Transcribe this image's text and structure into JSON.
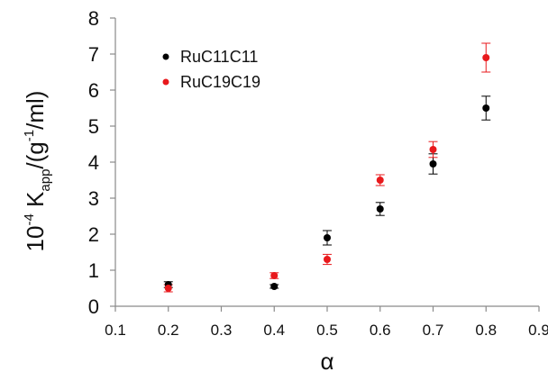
{
  "chart_data": {
    "type": "scatter",
    "title": "",
    "xlabel": "α",
    "ylabel": {
      "prefix": "10",
      "exponent": "-4",
      "symbol": "K",
      "subscript": "app",
      "unit_open": "/(g",
      "unit_exponent": "-1",
      "unit_close": "/ml)"
    },
    "xlim": [
      0.1,
      0.9
    ],
    "ylim": [
      0,
      8
    ],
    "xticks": [
      "0.1",
      "0.2",
      "0.3",
      "0.4",
      "0.5",
      "0.6",
      "0.7",
      "0.8",
      "0.9"
    ],
    "yticks": [
      "0",
      "1",
      "2",
      "3",
      "4",
      "5",
      "6",
      "7",
      "8"
    ],
    "grid": false,
    "legend_position": "top-left",
    "series": [
      {
        "name": "RuC11C11",
        "color": "#000000",
        "x": [
          0.2,
          0.4,
          0.5,
          0.6,
          0.7,
          0.8
        ],
        "y": [
          0.6,
          0.55,
          1.9,
          2.7,
          3.95,
          5.5
        ],
        "err": [
          0.08,
          0.05,
          0.2,
          0.18,
          0.28,
          0.33
        ]
      },
      {
        "name": "RuC19C19",
        "color": "#e8191c",
        "x": [
          0.2,
          0.4,
          0.5,
          0.6,
          0.7,
          0.8
        ],
        "y": [
          0.5,
          0.85,
          1.3,
          3.5,
          4.35,
          6.9
        ],
        "err": [
          0.1,
          0.08,
          0.14,
          0.15,
          0.22,
          0.4
        ]
      }
    ]
  }
}
